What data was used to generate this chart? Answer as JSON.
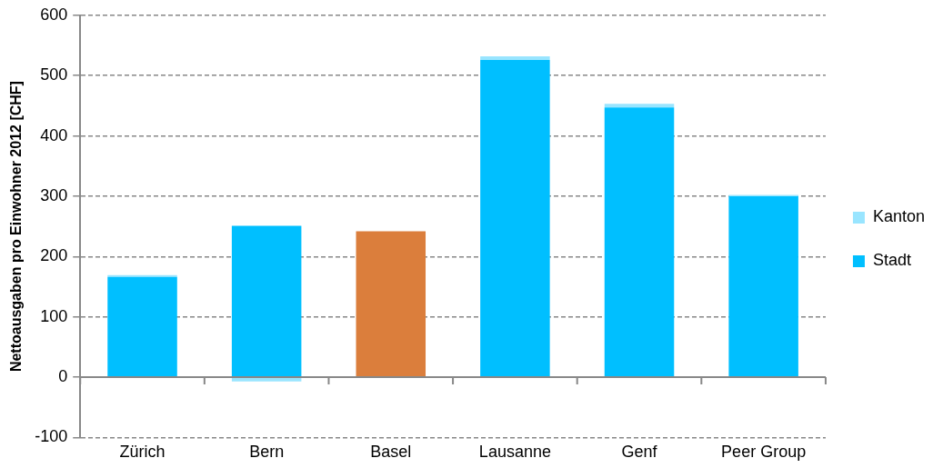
{
  "chart_data": {
    "type": "bar",
    "stacked": true,
    "ylabel": "Nettoausgaben pro Einwohner 2012 [CHF]",
    "categories": [
      "Zürich",
      "Bern",
      "Basel",
      "Lausanne",
      "Genf",
      "Peer Group"
    ],
    "series": [
      {
        "name": "Stadt",
        "color": "#00bfff",
        "colors": [
          "#00bfff",
          "#00bfff",
          "#db7e3c",
          "#00bfff",
          "#00bfff",
          "#00bfff"
        ],
        "values": [
          166,
          251,
          242,
          526,
          447,
          300
        ]
      },
      {
        "name": "Kanton",
        "color": "#99e5ff",
        "values": [
          3,
          -7,
          null,
          6,
          6,
          2
        ]
      }
    ],
    "ylim": [
      -100,
      600
    ],
    "yticks": [
      -100,
      0,
      100,
      200,
      300,
      400,
      500,
      600
    ],
    "grid": "y",
    "legend": "right"
  }
}
